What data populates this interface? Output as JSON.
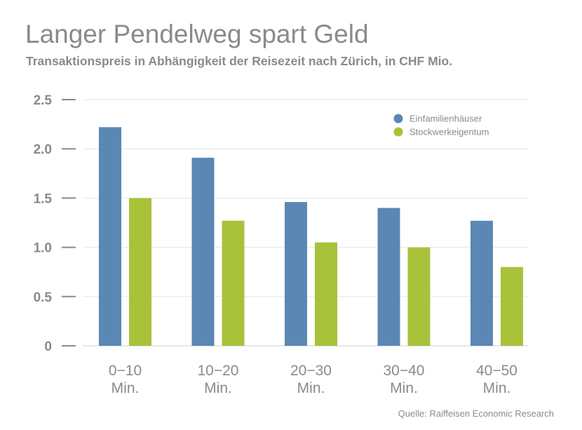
{
  "chart_data": {
    "type": "bar",
    "title": "Langer Pendelweg spart Geld",
    "subtitle": "Transaktionspreis in Abhängigkeit der Reisezeit nach Zürich, in CHF Mio.",
    "categories": [
      [
        "0−10",
        "Min."
      ],
      [
        "10−20",
        "Min."
      ],
      [
        "20−30",
        "Min."
      ],
      [
        "30−40",
        "Min."
      ],
      [
        "40−50",
        "Min."
      ]
    ],
    "series": [
      {
        "name": "Einfamilienhäuser",
        "values": [
          2.22,
          1.91,
          1.46,
          1.4,
          1.27
        ],
        "color": "#5b87b5"
      },
      {
        "name": "Stockwerkeigentum",
        "values": [
          1.5,
          1.27,
          1.05,
          1.0,
          0.8
        ],
        "color": "#a8c23a"
      }
    ],
    "ylim": [
      0,
      2.5
    ],
    "yticks": [
      "0",
      "0.5",
      "1.0",
      "1.5",
      "2.0",
      "2.5"
    ],
    "ytick_values": [
      0,
      0.5,
      1.0,
      1.5,
      2.0,
      2.5
    ],
    "grid": true,
    "legend_position": "top-right",
    "source": "Quelle: Raiffeisen Economic Research"
  }
}
